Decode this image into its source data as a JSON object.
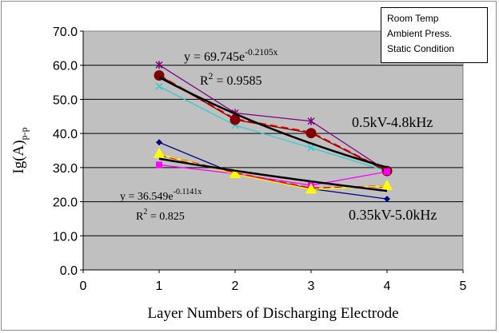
{
  "notes_box": [
    "Room Temp",
    "Ambient Press.",
    "Static Condition"
  ],
  "chart_data": {
    "type": "line",
    "title": "",
    "xlabel": "Layer Numbers of Discharging Electrode",
    "ylabel": "Ig(A)",
    "ylabel_sub": "p-p",
    "xlim": [
      0,
      5
    ],
    "ylim": [
      0,
      70
    ],
    "x_ticks": [
      "0",
      "1",
      "2",
      "3",
      "4",
      "5"
    ],
    "y_ticks": [
      "0.0",
      "10.0",
      "20.0",
      "30.0",
      "40.0",
      "50.0",
      "60.0",
      "70.0"
    ],
    "grid": "horizontal",
    "plot_background": "#c0c0c0",
    "x": [
      1,
      2,
      3,
      4
    ],
    "series": [
      {
        "group": "0.5kV-4.8kHz",
        "color": "#800080",
        "marker": "star",
        "values": [
          60.1,
          46.0,
          43.6,
          29.0
        ]
      },
      {
        "group": "0.5kV-4.8kHz",
        "color": "#33cccc",
        "marker": "x",
        "values": [
          53.8,
          42.4,
          35.8,
          29.0
        ]
      },
      {
        "group": "0.5kV-4.8kHz",
        "color": "#ff0000",
        "style": "dashed",
        "marker": "none",
        "values": [
          57.0,
          44.2,
          40.3,
          29.0
        ]
      },
      {
        "group": "0.5kV-4.8kHz",
        "color": "#800000",
        "marker": "circle",
        "values": [
          57.0,
          44.0,
          40.1,
          29.0
        ]
      },
      {
        "group": "0.35kV-5.0kHz",
        "color": "#000080",
        "marker": "diamond",
        "values": [
          37.4,
          28.2,
          23.8,
          20.8
        ]
      },
      {
        "group": "0.35kV-5.0kHz",
        "color": "#ff00ff",
        "marker": "square",
        "values": [
          30.8,
          28.2,
          24.8,
          28.8
        ]
      },
      {
        "group": "0.35kV-5.0kHz",
        "color": "#ff0000",
        "style": "dashed",
        "marker": "none",
        "values": [
          33.8,
          28.4,
          23.9,
          24.5
        ]
      },
      {
        "group": "0.35kV-5.0kHz",
        "color": "#ffff00",
        "marker": "triangle",
        "values": [
          34.0,
          28.1,
          23.6,
          24.6
        ]
      }
    ],
    "trendlines": [
      {
        "color": "#000000",
        "a": 69.745,
        "b": -0.2105,
        "equation": {
          "prefix": "y = 69.745e",
          "exp": "-0.2105x"
        },
        "r2": {
          "prefix": "R",
          "sup": "2",
          "rest": " = 0.9585"
        }
      },
      {
        "color": "#000000",
        "a": 36.549,
        "b": -0.1141,
        "equation": {
          "prefix": "y = 36.549e",
          "exp": "-0.1141x"
        },
        "r2": {
          "prefix": "R",
          "sup": "2",
          "rest": " = 0.825"
        }
      }
    ],
    "annotations": [
      "0.5kV-4.8kHz",
      "0.35kV-5.0kHz"
    ]
  }
}
